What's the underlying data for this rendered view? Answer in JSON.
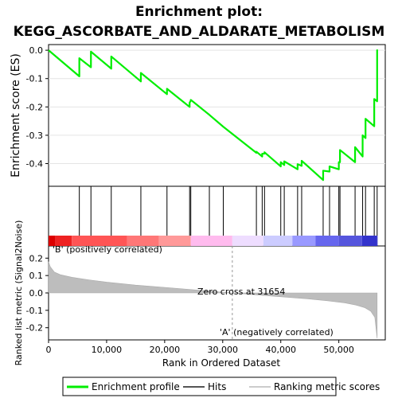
{
  "chart_data": {
    "type": "line",
    "title_line1": "Enrichment plot:",
    "title_line2": "KEGG_ASCORBATE_AND_ALDARATE_METABOLISM",
    "xlabel": "Rank in Ordered Dataset",
    "xlim": [
      0,
      58000
    ],
    "x_ticks": [
      0,
      10000,
      20000,
      30000,
      40000,
      50000
    ],
    "x_tick_labels": [
      "0",
      "10,000",
      "20,000",
      "30,000",
      "40,000",
      "50,000"
    ],
    "top_panel": {
      "ylabel": "Enrichment score (ES)",
      "ylim": [
        -0.48,
        0.02
      ],
      "y_ticks": [
        0.0,
        -0.1,
        -0.2,
        -0.3,
        -0.4
      ],
      "y_tick_labels": [
        "0.0",
        "-0.1",
        "-0.2",
        "-0.3",
        "-0.4"
      ],
      "series_name": "Enrichment profile",
      "color": "#00ee00",
      "hits": [
        5300,
        7300,
        10800,
        15900,
        20400,
        24300,
        24500,
        27700,
        30100,
        35800,
        36800,
        37200,
        40000,
        40600,
        42900,
        43600,
        47300,
        48400,
        50000,
        50200,
        52800,
        54100,
        54600,
        56100,
        56600
      ],
      "es_before": [
        -0.092,
        -0.06,
        -0.065,
        -0.11,
        -0.155,
        -0.2,
        -0.178,
        -0.228,
        -0.27,
        -0.362,
        -0.375,
        -0.365,
        -0.41,
        -0.405,
        -0.42,
        -0.408,
        -0.458,
        -0.428,
        -0.42,
        -0.395,
        -0.395,
        -0.375,
        -0.31,
        -0.268,
        -0.18
      ],
      "es_after": [
        -0.028,
        -0.005,
        -0.022,
        -0.08,
        -0.136,
        -0.185,
        -0.175,
        -0.228,
        -0.27,
        -0.358,
        -0.365,
        -0.36,
        -0.395,
        -0.392,
        -0.402,
        -0.39,
        -0.425,
        -0.41,
        -0.395,
        -0.352,
        -0.342,
        -0.3,
        -0.242,
        -0.172,
        0.0
      ]
    },
    "bottom_panel": {
      "ylabel": "Ranked list metric (Signal2Noise)",
      "ylim": [
        -0.27,
        0.27
      ],
      "y_ticks": [
        0.2,
        0.1,
        0.0,
        -0.1,
        -0.2
      ],
      "y_tick_labels": [
        "0.2",
        "0.1",
        "0.0",
        "-0.1",
        "-0.2"
      ],
      "metric_profile_x": [
        0,
        300,
        1000,
        2000,
        4000,
        7000,
        10000,
        15000,
        20000,
        25000,
        31654,
        36000,
        40000,
        45000,
        48000,
        51000,
        53000,
        54500,
        55500,
        56200,
        56600
      ],
      "metric_profile_y": [
        0.18,
        0.15,
        0.12,
        0.105,
        0.09,
        0.075,
        0.062,
        0.045,
        0.032,
        0.018,
        0.0,
        -0.012,
        -0.022,
        -0.035,
        -0.045,
        -0.057,
        -0.07,
        -0.085,
        -0.105,
        -0.14,
        -0.26
      ],
      "zero_cross_x": 31654,
      "zero_cross_label": "Zero cross at 31654",
      "positive_label": "'B' (positively correlated)",
      "negative_label": "'A' (negatively correlated)",
      "positive_label_color": "#cc0000",
      "negative_label_color": "#0000cc"
    },
    "color_band": {
      "stops": [
        {
          "x": 0,
          "color": "#dd0000"
        },
        {
          "x": 1200,
          "color": "#ee2222"
        },
        {
          "x": 4000,
          "color": "#ff5555"
        },
        {
          "x": 13500,
          "color": "#ff7777"
        },
        {
          "x": 19000,
          "color": "#ff9999"
        },
        {
          "x": 24500,
          "color": "#ffbbee"
        },
        {
          "x": 31654,
          "color": "#eeddff"
        },
        {
          "x": 37000,
          "color": "#ccccff"
        },
        {
          "x": 42000,
          "color": "#9999ff"
        },
        {
          "x": 46000,
          "color": "#6666ee"
        },
        {
          "x": 50000,
          "color": "#5555dd"
        },
        {
          "x": 54000,
          "color": "#3333cc"
        },
        {
          "x": 56600,
          "color": "#0000aa"
        }
      ]
    },
    "legend": {
      "placement": "bottom",
      "items": [
        {
          "label": "Enrichment profile",
          "color": "#00ee00",
          "kind": "line"
        },
        {
          "label": "Hits",
          "color": "#555555",
          "kind": "line"
        },
        {
          "label": "Ranking metric scores",
          "color": "#cccccc",
          "kind": "line"
        }
      ]
    }
  }
}
